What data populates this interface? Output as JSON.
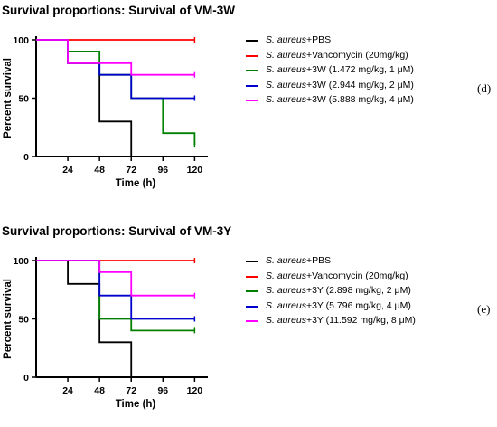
{
  "chart_data": [
    {
      "type": "line",
      "step": true,
      "title": "Survival proportions: Survival of VM-3W",
      "xlabel": "Time (h)",
      "ylabel": "Percent survival",
      "xlim": [
        0,
        130
      ],
      "ylim": [
        0,
        100
      ],
      "xticks": [
        24,
        48,
        72,
        96,
        120
      ],
      "yticks": [
        0,
        50,
        100
      ],
      "grid": false,
      "legend_position": "right",
      "panel_label": "(d)",
      "series": [
        {
          "name_italic": "S. aureus",
          "name_rest": "+PBS",
          "color": "#000000",
          "x": [
            0,
            24,
            48,
            72
          ],
          "y": [
            100,
            80,
            30,
            0
          ]
        },
        {
          "name_italic": "S. aureus",
          "name_rest": "+Vancomycin (20mg/kg)",
          "color": "#ff0000",
          "x": [
            0,
            120
          ],
          "y": [
            100,
            100
          ]
        },
        {
          "name_italic": "S. aureus",
          "name_rest": "+3W (1.472 mg/kg, 1 μM)",
          "color": "#008000",
          "x": [
            0,
            24,
            48,
            72,
            96,
            120
          ],
          "y": [
            100,
            90,
            70,
            50,
            20,
            10
          ]
        },
        {
          "name_italic": "S. aureus",
          "name_rest": "+3W (2.944 mg/kg, 2 μM)",
          "color": "#0000cc",
          "x": [
            0,
            24,
            48,
            72,
            120
          ],
          "y": [
            100,
            80,
            70,
            50,
            50
          ]
        },
        {
          "name_italic": "S. aureus",
          "name_rest": "+3W (5.888 mg/kg, 4 μM)",
          "color": "#ff00ff",
          "x": [
            0,
            24,
            48,
            72,
            120
          ],
          "y": [
            100,
            80,
            80,
            70,
            70
          ]
        }
      ]
    },
    {
      "type": "line",
      "step": true,
      "title": "Survival proportions: Survival of VM-3Y",
      "xlabel": "Time (h)",
      "ylabel": "Percent survival",
      "xlim": [
        0,
        130
      ],
      "ylim": [
        0,
        100
      ],
      "xticks": [
        24,
        48,
        72,
        96,
        120
      ],
      "yticks": [
        0,
        50,
        100
      ],
      "grid": false,
      "legend_position": "right",
      "panel_label": "(e)",
      "series": [
        {
          "name_italic": "S. aureus",
          "name_rest": "+PBS",
          "color": "#000000",
          "x": [
            0,
            24,
            48,
            72
          ],
          "y": [
            100,
            80,
            30,
            0
          ]
        },
        {
          "name_italic": "S. aureus",
          "name_rest": "+Vancomycin (20mg/kg)",
          "color": "#ff0000",
          "x": [
            0,
            120
          ],
          "y": [
            100,
            100
          ]
        },
        {
          "name_italic": "S. aureus",
          "name_rest": "+3Y (2.898 mg/kg, 2 μM)",
          "color": "#008000",
          "x": [
            0,
            48,
            72,
            120
          ],
          "y": [
            100,
            50,
            40,
            40
          ]
        },
        {
          "name_italic": "S. aureus",
          "name_rest": "+3Y (5.796 mg/kg, 4 μM)",
          "color": "#0000cc",
          "x": [
            0,
            48,
            72,
            120
          ],
          "y": [
            100,
            70,
            50,
            50
          ]
        },
        {
          "name_italic": "S. aureus",
          "name_rest": "+3Y (11.592 mg/kg, 8 μM)",
          "color": "#ff00ff",
          "x": [
            0,
            48,
            72,
            120
          ],
          "y": [
            100,
            90,
            70,
            70
          ]
        }
      ]
    }
  ]
}
